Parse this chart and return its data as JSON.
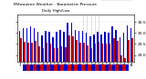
{
  "title": "Milwaukee Weather - Barometric Pressure",
  "subtitle": "Daily High/Low",
  "legend_blue": "High",
  "legend_red": "Low",
  "ylim": [
    28.7,
    30.85
  ],
  "bar_color_high": "#0000cc",
  "bar_color_low": "#cc0000",
  "background_color": "#ffffff",
  "highs": [
    30.1,
    30.2,
    30.2,
    30.3,
    30.2,
    30.05,
    29.9,
    30.1,
    30.05,
    29.8,
    30.05,
    30.15,
    30.05,
    30.45,
    30.45,
    30.15,
    30.1,
    30.1,
    30.0,
    29.85,
    29.95,
    30.05,
    29.95,
    30.05,
    30.0,
    30.3,
    30.15,
    29.8,
    30.0,
    30.35,
    30.2
  ],
  "lows": [
    29.75,
    29.6,
    29.55,
    29.55,
    29.65,
    29.4,
    29.3,
    29.55,
    29.5,
    29.3,
    29.3,
    29.4,
    29.35,
    29.9,
    29.85,
    29.7,
    29.55,
    29.55,
    29.45,
    29.3,
    29.5,
    29.6,
    29.5,
    29.5,
    29.5,
    29.75,
    29.65,
    29.0,
    28.85,
    29.7,
    29.75
  ],
  "x_labels": [
    "1",
    "",
    "3",
    "",
    "5",
    "",
    "7",
    "",
    "9",
    "",
    "11",
    "",
    "13",
    "",
    "15",
    "",
    "17",
    "",
    "19",
    "",
    "21",
    "",
    "23",
    "",
    "25",
    "",
    "27",
    "",
    "29",
    "",
    "31"
  ],
  "dotted_cols": [
    17,
    18,
    19,
    20,
    21
  ],
  "bar_width": 0.38
}
